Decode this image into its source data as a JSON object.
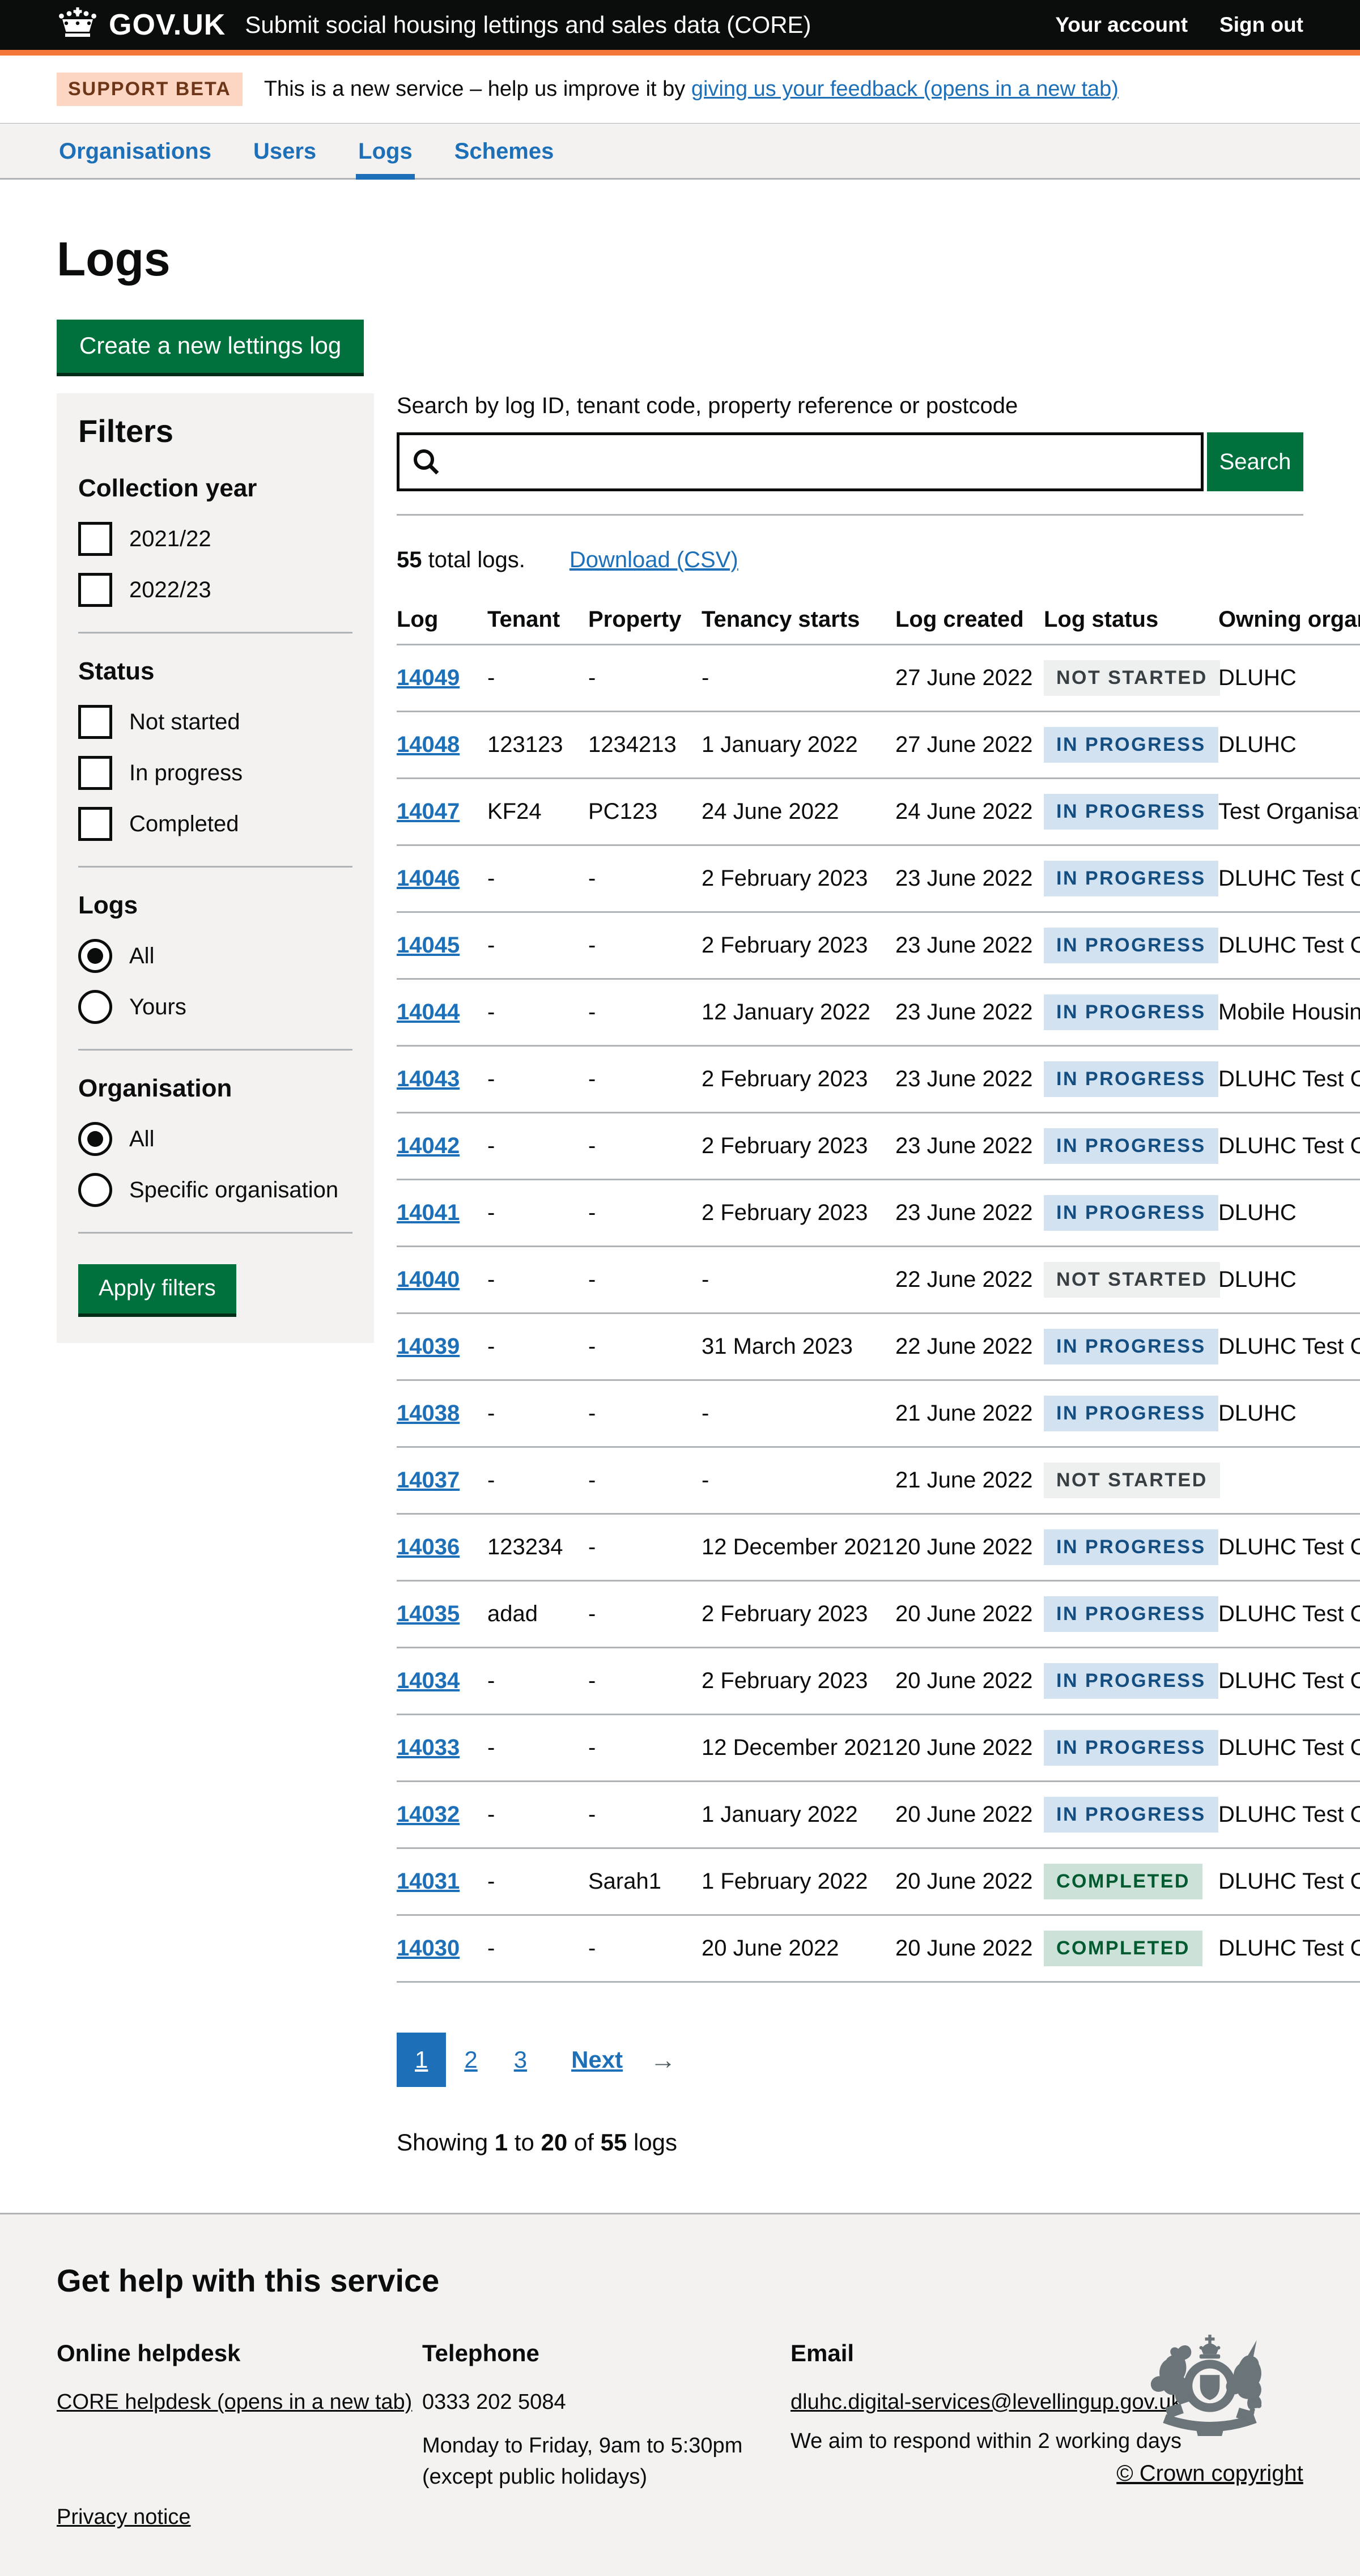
{
  "header": {
    "govuk": "GOV.UK",
    "service_name": "Submit social housing lettings and sales data (CORE)",
    "links": [
      {
        "label": "Your account"
      },
      {
        "label": "Sign out"
      }
    ]
  },
  "phase_banner": {
    "tag": "SUPPORT BETA",
    "text_before": "This is a new service – help us improve it by ",
    "link_label": "giving us your feedback (opens in a new tab)"
  },
  "nav": {
    "items": [
      {
        "label": "Organisations",
        "active": false
      },
      {
        "label": "Users",
        "active": false
      },
      {
        "label": "Logs",
        "active": true
      },
      {
        "label": "Schemes",
        "active": false
      }
    ]
  },
  "page": {
    "title": "Logs",
    "create_button_label": "Create a new lettings log"
  },
  "filters": {
    "title": "Filters",
    "sections": [
      {
        "heading": "Collection year",
        "type": "checkbox",
        "options": [
          {
            "label": "2021/22",
            "checked": false
          },
          {
            "label": "2022/23",
            "checked": false
          }
        ]
      },
      {
        "heading": "Status",
        "type": "checkbox",
        "options": [
          {
            "label": "Not started",
            "checked": false
          },
          {
            "label": "In progress",
            "checked": false
          },
          {
            "label": "Completed",
            "checked": false
          }
        ]
      },
      {
        "heading": "Logs",
        "type": "radio",
        "options": [
          {
            "label": "All",
            "checked": true
          },
          {
            "label": "Yours",
            "checked": false
          }
        ]
      },
      {
        "heading": "Organisation",
        "type": "radio",
        "options": [
          {
            "label": "All",
            "checked": true
          },
          {
            "label": "Specific organisation",
            "checked": false
          }
        ]
      }
    ],
    "apply_label": "Apply filters"
  },
  "search": {
    "label": "Search by log ID, tenant code, property reference or postcode",
    "value": "",
    "button_label": "Search"
  },
  "results_summary": {
    "total_count": "55",
    "total_rest": " total logs.",
    "download_label": "Download (CSV)"
  },
  "table": {
    "columns": [
      "Log",
      "Tenant",
      "Property",
      "Tenancy starts",
      "Log created",
      "Log status",
      "Owning organisation"
    ],
    "rows": [
      {
        "log": "14049",
        "tenant": "-",
        "property": "-",
        "tenancy_starts": "-",
        "log_created": "27 June 2022",
        "status": "Not started",
        "status_type": "grey",
        "owning": "DLUHC"
      },
      {
        "log": "14048",
        "tenant": "123123",
        "property": "1234213",
        "tenancy_starts": "1 January 2022",
        "log_created": "27 June 2022",
        "status": "In progress",
        "status_type": "blue",
        "owning": "DLUHC"
      },
      {
        "log": "14047",
        "tenant": "KF24",
        "property": "PC123",
        "tenancy_starts": "24 June 2022",
        "log_created": "24 June 2022",
        "status": "In progress",
        "status_type": "blue",
        "owning": "Test Organisation"
      },
      {
        "log": "14046",
        "tenant": "-",
        "property": "-",
        "tenancy_starts": "2 February 2023",
        "log_created": "23 June 2022",
        "status": "In progress",
        "status_type": "blue",
        "owning": "DLUHC Test Organisation"
      },
      {
        "log": "14045",
        "tenant": "-",
        "property": "-",
        "tenancy_starts": "2 February 2023",
        "log_created": "23 June 2022",
        "status": "In progress",
        "status_type": "blue",
        "owning": "DLUHC Test Organisation"
      },
      {
        "log": "14044",
        "tenant": "-",
        "property": "-",
        "tenancy_starts": "12 January 2022",
        "log_created": "23 June 2022",
        "status": "In progress",
        "status_type": "blue",
        "owning": "Mobile Housing Organisation"
      },
      {
        "log": "14043",
        "tenant": "-",
        "property": "-",
        "tenancy_starts": "2 February 2023",
        "log_created": "23 June 2022",
        "status": "In progress",
        "status_type": "blue",
        "owning": "DLUHC Test Organisation"
      },
      {
        "log": "14042",
        "tenant": "-",
        "property": "-",
        "tenancy_starts": "2 February 2023",
        "log_created": "23 June 2022",
        "status": "In progress",
        "status_type": "blue",
        "owning": "DLUHC Test Organisation"
      },
      {
        "log": "14041",
        "tenant": "-",
        "property": "-",
        "tenancy_starts": "2 February 2023",
        "log_created": "23 June 2022",
        "status": "In progress",
        "status_type": "blue",
        "owning": "DLUHC"
      },
      {
        "log": "14040",
        "tenant": "-",
        "property": "-",
        "tenancy_starts": "-",
        "log_created": "22 June 2022",
        "status": "Not started",
        "status_type": "grey",
        "owning": "DLUHC"
      },
      {
        "log": "14039",
        "tenant": "-",
        "property": "-",
        "tenancy_starts": "31 March 2023",
        "log_created": "22 June 2022",
        "status": "In progress",
        "status_type": "blue",
        "owning": "DLUHC Test Organisation"
      },
      {
        "log": "14038",
        "tenant": "-",
        "property": "-",
        "tenancy_starts": "-",
        "log_created": "21 June 2022",
        "status": "In progress",
        "status_type": "blue",
        "owning": "DLUHC"
      },
      {
        "log": "14037",
        "tenant": "-",
        "property": "-",
        "tenancy_starts": "-",
        "log_created": "21 June 2022",
        "status": "Not started",
        "status_type": "grey",
        "owning": ""
      },
      {
        "log": "14036",
        "tenant": "123234",
        "property": "-",
        "tenancy_starts": "12 December 2021",
        "log_created": "20 June 2022",
        "status": "In progress",
        "status_type": "blue",
        "owning": "DLUHC Test Organisation"
      },
      {
        "log": "14035",
        "tenant": "adad",
        "property": "-",
        "tenancy_starts": "2 February 2023",
        "log_created": "20 June 2022",
        "status": "In progress",
        "status_type": "blue",
        "owning": "DLUHC Test Organisation"
      },
      {
        "log": "14034",
        "tenant": "-",
        "property": "-",
        "tenancy_starts": "2 February 2023",
        "log_created": "20 June 2022",
        "status": "In progress",
        "status_type": "blue",
        "owning": "DLUHC Test Organisation"
      },
      {
        "log": "14033",
        "tenant": "-",
        "property": "-",
        "tenancy_starts": "12 December 2021",
        "log_created": "20 June 2022",
        "status": "In progress",
        "status_type": "blue",
        "owning": "DLUHC Test Organisation"
      },
      {
        "log": "14032",
        "tenant": "-",
        "property": "-",
        "tenancy_starts": "1 January 2022",
        "log_created": "20 June 2022",
        "status": "In progress",
        "status_type": "blue",
        "owning": "DLUHC Test Organisation"
      },
      {
        "log": "14031",
        "tenant": "-",
        "property": "Sarah1",
        "tenancy_starts": "1 February 2022",
        "log_created": "20 June 2022",
        "status": "Completed",
        "status_type": "green",
        "owning": "DLUHC Test Organisation"
      },
      {
        "log": "14030",
        "tenant": "-",
        "property": "-",
        "tenancy_starts": "20 June 2022",
        "log_created": "20 June 2022",
        "status": "Completed",
        "status_type": "green",
        "owning": "DLUHC Test Organisation"
      }
    ]
  },
  "pagination": {
    "pages": [
      {
        "label": "1",
        "current": true
      },
      {
        "label": "2",
        "current": false
      },
      {
        "label": "3",
        "current": false
      }
    ],
    "next_label": "Next"
  },
  "showing": {
    "prefix": "Showing ",
    "from": "1",
    "infix1": " to ",
    "to": "20",
    "infix2": " of ",
    "total": "55",
    "suffix": " logs"
  },
  "footer": {
    "heading": "Get help with this service",
    "helpdesk": {
      "heading": "Online helpdesk",
      "link_label": "CORE helpdesk (opens in a new tab)"
    },
    "telephone": {
      "heading": "Telephone",
      "number": "0333 202 5084",
      "hours": "Monday to Friday, 9am to 5:30pm",
      "hours2": "(except public holidays)"
    },
    "email": {
      "heading": "Email",
      "link_label": "dluhc.digital-services@levellingup.gov.uk",
      "note": "We aim to respond within 2 working days"
    },
    "crown_copyright": "© Crown copyright",
    "privacy_label": "Privacy notice"
  },
  "colors": {
    "accent_orange": "#f47738",
    "link_blue": "#1d70b8",
    "button_green": "#00703c",
    "tag_grey_bg": "#eeefef",
    "tag_blue_bg": "#d2e2f1",
    "tag_green_bg": "#cce2d8"
  }
}
